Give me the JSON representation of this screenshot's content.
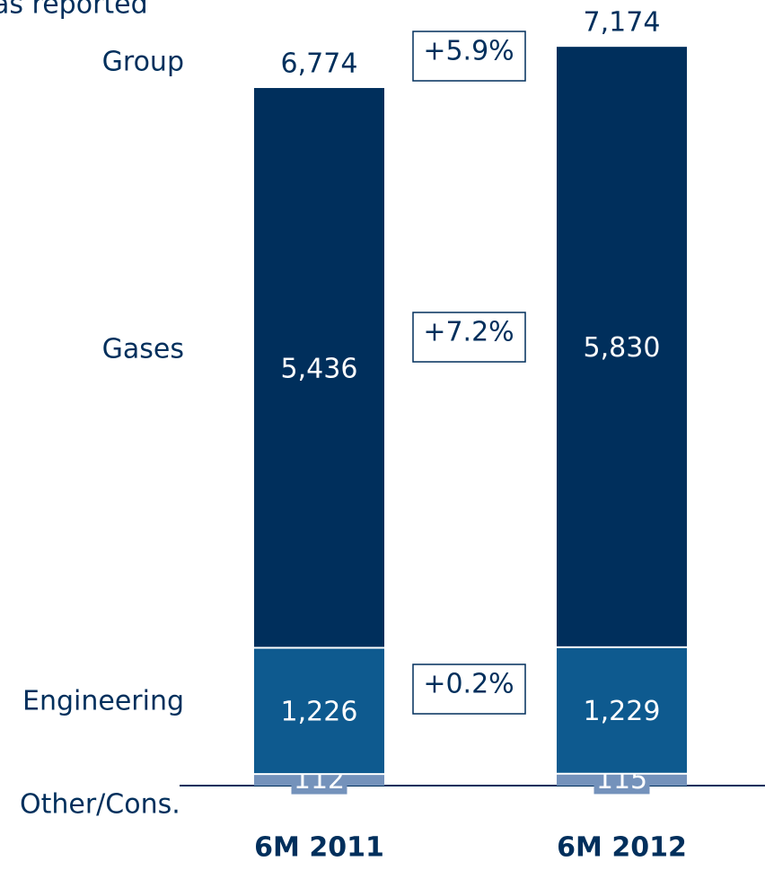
{
  "chart_data": {
    "type": "stacked-bar",
    "title": "as reported",
    "categories": [
      "6M 2011",
      "6M 2012"
    ],
    "series": [
      {
        "name": "Other/Cons.",
        "color": "#7492bb",
        "values": [
          112,
          115
        ]
      },
      {
        "name": "Engineering",
        "color": "#0e5a8f",
        "values": [
          1226,
          1229
        ],
        "value_labels": [
          "1,226",
          "1,229"
        ],
        "change": "+0.2%"
      },
      {
        "name": "Gases",
        "color": "#002f5c",
        "values": [
          5436,
          5830
        ],
        "value_labels": [
          "5,436",
          "5,830"
        ],
        "change": "+7.2%"
      }
    ],
    "totals": {
      "name": "Group",
      "values": [
        6774,
        7174
      ],
      "value_labels": [
        "6,774",
        "7,174"
      ],
      "change": "+5.9%"
    }
  }
}
